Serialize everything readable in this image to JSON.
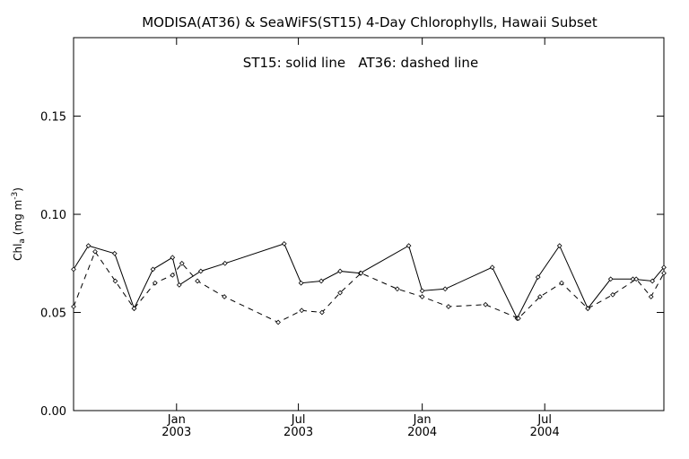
{
  "chart_data": {
    "type": "line",
    "title": "MODISA(AT36) & SeaWiFS(ST15) 4-Day Chlorophylls, Hawaii Subset",
    "annotation": "ST15: solid line   AT36: dashed line",
    "ylabel": "Chl_a (mg m^-3)",
    "xlabel": "",
    "ylim": [
      0,
      0.19
    ],
    "xlim": [
      "2002-08-01",
      "2004-12-25"
    ],
    "y_ticks": [
      "0.00",
      "0.05",
      "0.10",
      "0.15"
    ],
    "x_ticks": [
      {
        "month": "Jan",
        "year": "2003"
      },
      {
        "month": "Jul",
        "year": "2003"
      },
      {
        "month": "Jan",
        "year": "2004"
      },
      {
        "month": "Jul",
        "year": "2004"
      }
    ],
    "grid": false,
    "series": [
      {
        "name": "ST15",
        "style": "solid",
        "x": [
          "2002-08-01",
          "2002-08-23",
          "2002-10-01",
          "2002-10-30",
          "2002-11-27",
          "2002-12-26",
          "2003-01-05",
          "2003-02-06",
          "2003-03-14",
          "2003-06-10",
          "2003-07-05",
          "2003-08-04",
          "2003-09-01",
          "2003-10-01",
          "2003-12-12",
          "2004-01-01",
          "2004-02-04",
          "2004-04-14",
          "2004-05-21",
          "2004-06-21",
          "2004-07-23",
          "2004-09-03",
          "2004-10-07",
          "2004-11-09",
          "2004-12-08",
          "2004-12-25"
        ],
        "values": [
          0.072,
          0.084,
          0.08,
          0.052,
          0.072,
          0.078,
          0.064,
          0.071,
          0.075,
          0.085,
          0.065,
          0.066,
          0.071,
          0.07,
          0.084,
          0.061,
          0.062,
          0.073,
          0.047,
          0.068,
          0.084,
          0.052,
          0.067,
          0.067,
          0.066,
          0.073
        ]
      },
      {
        "name": "AT36",
        "style": "dashed",
        "x": [
          "2002-08-01",
          "2002-09-02",
          "2002-10-02",
          "2002-10-30",
          "2002-11-30",
          "2002-12-26",
          "2003-01-09",
          "2003-02-01",
          "2003-03-13",
          "2003-06-01",
          "2003-07-06",
          "2003-08-05",
          "2003-09-01",
          "2003-10-02",
          "2003-11-25",
          "2004-01-01",
          "2004-02-09",
          "2004-04-04",
          "2004-05-23",
          "2004-06-24",
          "2004-07-26",
          "2004-09-03",
          "2004-10-10",
          "2004-11-14",
          "2004-12-06",
          "2004-12-25"
        ],
        "values": [
          0.053,
          0.081,
          0.066,
          0.052,
          0.065,
          0.069,
          0.075,
          0.066,
          0.058,
          0.045,
          0.051,
          0.05,
          0.06,
          0.07,
          0.062,
          0.058,
          0.053,
          0.054,
          0.047,
          0.058,
          0.065,
          0.052,
          0.059,
          0.067,
          0.058,
          0.07
        ]
      }
    ]
  }
}
